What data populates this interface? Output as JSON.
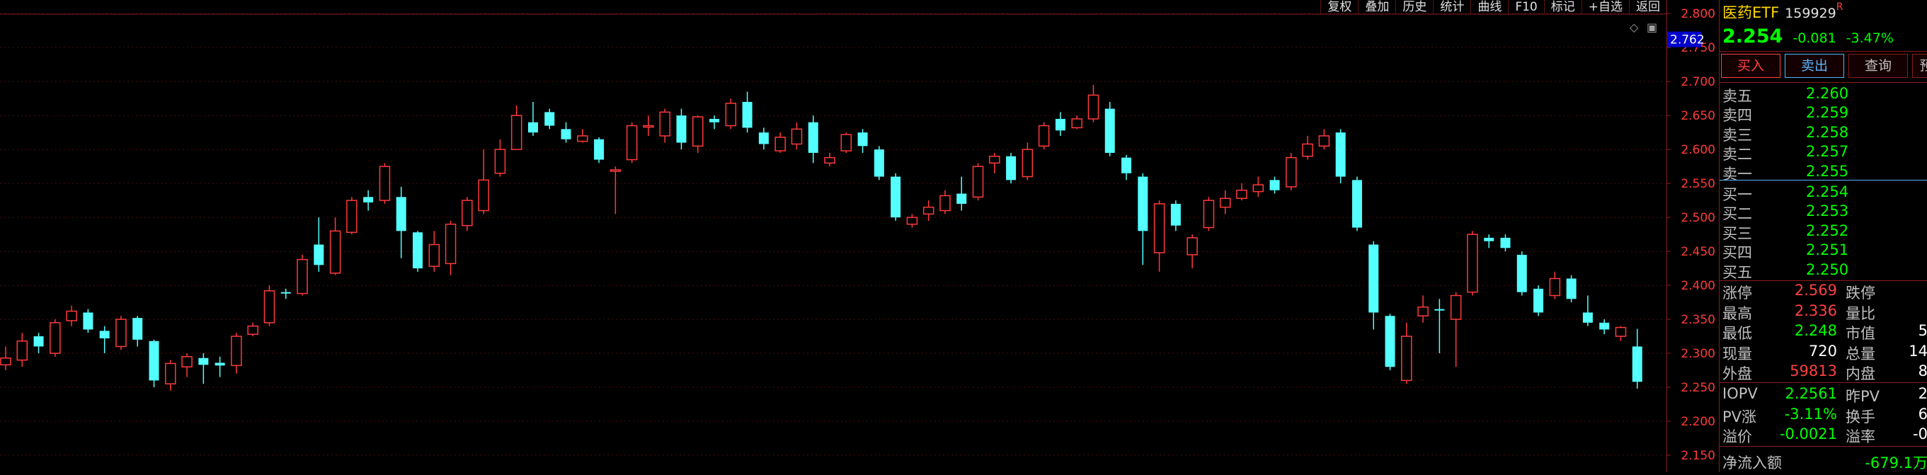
{
  "toolbar": {
    "items": [
      "复权",
      "叠加",
      "历史",
      "统计",
      "曲线",
      "F10",
      "标记",
      "+自选",
      "返回"
    ]
  },
  "quote": {
    "name": "医药ETF",
    "code": "159929",
    "flag": "R",
    "price": "2.254",
    "change": "-0.081",
    "change_pct": "-3.47%"
  },
  "buttons": {
    "buy": "买入",
    "sell": "卖出",
    "query": "查询",
    "more": "预"
  },
  "orderbook": {
    "asks": [
      {
        "label": "卖五",
        "price": "2.260"
      },
      {
        "label": "卖四",
        "price": "2.259"
      },
      {
        "label": "卖三",
        "price": "2.258"
      },
      {
        "label": "卖二",
        "price": "2.257"
      },
      {
        "label": "卖一",
        "price": "2.255"
      }
    ],
    "bids": [
      {
        "label": "买一",
        "price": "2.254"
      },
      {
        "label": "买二",
        "price": "2.253"
      },
      {
        "label": "买三",
        "price": "2.252"
      },
      {
        "label": "买四",
        "price": "2.251"
      },
      {
        "label": "买五",
        "price": "2.250"
      }
    ]
  },
  "stats": [
    {
      "l1": "涨停",
      "v1": "2.569",
      "c1": "red",
      "l2": "跌停",
      "v2": ""
    },
    {
      "l1": "最高",
      "v1": "2.336",
      "c1": "red",
      "l2": "量比",
      "v2": ""
    },
    {
      "l1": "最低",
      "v1": "2.248",
      "c1": "green",
      "l2": "市值",
      "v2": "5"
    },
    {
      "l1": "现量",
      "v1": "720",
      "c1": "white",
      "l2": "总量",
      "v2": "14"
    },
    {
      "l1": "外盘",
      "v1": "59813",
      "c1": "red",
      "l2": "内盘",
      "v2": "8"
    }
  ],
  "iopv": [
    {
      "l1": "IOPV",
      "v1": "2.2561",
      "c1": "green",
      "l2": "昨PV",
      "v2": "2"
    },
    {
      "l1": "PV涨",
      "v1": "-3.11%",
      "c1": "green",
      "l2": "换手",
      "v2": "6"
    },
    {
      "l1": "溢价",
      "v1": "-0.0021",
      "c1": "green",
      "l2": "溢率",
      "v2": "-0"
    }
  ],
  "netflow": {
    "label": "净流入额",
    "value": "-679.1万"
  },
  "colors": {
    "up": "#ff3a3a",
    "down": "#54ffff",
    "grid": "#4a0d0d",
    "axis_text": "#ff3a3a",
    "current_box": "#0000cc"
  },
  "chart_data": {
    "type": "candlestick",
    "ylim": [
      2.125,
      2.82
    ],
    "yticks": [
      "2.800",
      "2.750",
      "2.700",
      "2.650",
      "2.600",
      "2.550",
      "2.500",
      "2.450",
      "2.400",
      "2.350",
      "2.300",
      "2.250",
      "2.200",
      "2.150"
    ],
    "current_value": "2.762",
    "candles": [
      {
        "o": 2.283,
        "c": 2.293,
        "h": 2.31,
        "l": 2.275
      },
      {
        "o": 2.29,
        "c": 2.318,
        "h": 2.33,
        "l": 2.28
      },
      {
        "o": 2.325,
        "c": 2.31,
        "h": 2.33,
        "l": 2.3
      },
      {
        "o": 2.3,
        "c": 2.345,
        "h": 2.35,
        "l": 2.295
      },
      {
        "o": 2.348,
        "c": 2.362,
        "h": 2.37,
        "l": 2.34
      },
      {
        "o": 2.36,
        "c": 2.335,
        "h": 2.365,
        "l": 2.33
      },
      {
        "o": 2.333,
        "c": 2.322,
        "h": 2.34,
        "l": 2.3
      },
      {
        "o": 2.31,
        "c": 2.35,
        "h": 2.355,
        "l": 2.305
      },
      {
        "o": 2.352,
        "c": 2.32,
        "h": 2.355,
        "l": 2.31
      },
      {
        "o": 2.318,
        "c": 2.26,
        "h": 2.32,
        "l": 2.25
      },
      {
        "o": 2.255,
        "c": 2.285,
        "h": 2.29,
        "l": 2.245
      },
      {
        "o": 2.28,
        "c": 2.295,
        "h": 2.3,
        "l": 2.265
      },
      {
        "o": 2.293,
        "c": 2.283,
        "h": 2.3,
        "l": 2.255
      },
      {
        "o": 2.286,
        "c": 2.282,
        "h": 2.295,
        "l": 2.265
      },
      {
        "o": 2.282,
        "c": 2.325,
        "h": 2.33,
        "l": 2.27
      },
      {
        "o": 2.328,
        "c": 2.34,
        "h": 2.345,
        "l": 2.325
      },
      {
        "o": 2.345,
        "c": 2.392,
        "h": 2.4,
        "l": 2.34
      },
      {
        "o": 2.39,
        "c": 2.388,
        "h": 2.395,
        "l": 2.38
      },
      {
        "o": 2.388,
        "c": 2.438,
        "h": 2.445,
        "l": 2.385
      },
      {
        "o": 2.46,
        "c": 2.43,
        "h": 2.5,
        "l": 2.42
      },
      {
        "o": 2.418,
        "c": 2.48,
        "h": 2.5,
        "l": 2.415
      },
      {
        "o": 2.478,
        "c": 2.525,
        "h": 2.53,
        "l": 2.475
      },
      {
        "o": 2.53,
        "c": 2.522,
        "h": 2.54,
        "l": 2.51
      },
      {
        "o": 2.525,
        "c": 2.575,
        "h": 2.58,
        "l": 2.52
      },
      {
        "o": 2.53,
        "c": 2.48,
        "h": 2.545,
        "l": 2.44
      },
      {
        "o": 2.478,
        "c": 2.425,
        "h": 2.48,
        "l": 2.42
      },
      {
        "o": 2.428,
        "c": 2.46,
        "h": 2.48,
        "l": 2.42
      },
      {
        "o": 2.432,
        "c": 2.49,
        "h": 2.495,
        "l": 2.415
      },
      {
        "o": 2.488,
        "c": 2.525,
        "h": 2.53,
        "l": 2.48
      },
      {
        "o": 2.51,
        "c": 2.555,
        "h": 2.6,
        "l": 2.505
      },
      {
        "o": 2.565,
        "c": 2.6,
        "h": 2.615,
        "l": 2.56
      },
      {
        "o": 2.6,
        "c": 2.65,
        "h": 2.665,
        "l": 2.6
      },
      {
        "o": 2.64,
        "c": 2.625,
        "h": 2.67,
        "l": 2.62
      },
      {
        "o": 2.655,
        "c": 2.635,
        "h": 2.66,
        "l": 2.63
      },
      {
        "o": 2.63,
        "c": 2.615,
        "h": 2.64,
        "l": 2.61
      },
      {
        "o": 2.612,
        "c": 2.62,
        "h": 2.63,
        "l": 2.61
      },
      {
        "o": 2.615,
        "c": 2.585,
        "h": 2.618,
        "l": 2.58
      },
      {
        "o": 2.57,
        "c": 2.57,
        "h": 2.575,
        "l": 2.505
      },
      {
        "o": 2.585,
        "c": 2.635,
        "h": 2.64,
        "l": 2.58
      },
      {
        "o": 2.635,
        "c": 2.635,
        "h": 2.65,
        "l": 2.62
      },
      {
        "o": 2.62,
        "c": 2.655,
        "h": 2.66,
        "l": 2.61
      },
      {
        "o": 2.65,
        "c": 2.61,
        "h": 2.66,
        "l": 2.6
      },
      {
        "o": 2.605,
        "c": 2.648,
        "h": 2.65,
        "l": 2.595
      },
      {
        "o": 2.645,
        "c": 2.64,
        "h": 2.65,
        "l": 2.63
      },
      {
        "o": 2.635,
        "c": 2.668,
        "h": 2.675,
        "l": 2.63
      },
      {
        "o": 2.67,
        "c": 2.632,
        "h": 2.685,
        "l": 2.625
      },
      {
        "o": 2.625,
        "c": 2.608,
        "h": 2.632,
        "l": 2.6
      },
      {
        "o": 2.598,
        "c": 2.618,
        "h": 2.625,
        "l": 2.595
      },
      {
        "o": 2.608,
        "c": 2.63,
        "h": 2.64,
        "l": 2.6
      },
      {
        "o": 2.64,
        "c": 2.595,
        "h": 2.65,
        "l": 2.58
      },
      {
        "o": 2.58,
        "c": 2.588,
        "h": 2.595,
        "l": 2.575
      },
      {
        "o": 2.598,
        "c": 2.622,
        "h": 2.625,
        "l": 2.595
      },
      {
        "o": 2.625,
        "c": 2.605,
        "h": 2.63,
        "l": 2.595
      },
      {
        "o": 2.6,
        "c": 2.56,
        "h": 2.605,
        "l": 2.555
      },
      {
        "o": 2.56,
        "c": 2.5,
        "h": 2.565,
        "l": 2.495
      },
      {
        "o": 2.49,
        "c": 2.5,
        "h": 2.505,
        "l": 2.485
      },
      {
        "o": 2.505,
        "c": 2.515,
        "h": 2.525,
        "l": 2.495
      },
      {
        "o": 2.51,
        "c": 2.532,
        "h": 2.54,
        "l": 2.505
      },
      {
        "o": 2.535,
        "c": 2.52,
        "h": 2.56,
        "l": 2.51
      },
      {
        "o": 2.53,
        "c": 2.575,
        "h": 2.58,
        "l": 2.525
      },
      {
        "o": 2.58,
        "c": 2.59,
        "h": 2.595,
        "l": 2.565
      },
      {
        "o": 2.59,
        "c": 2.555,
        "h": 2.595,
        "l": 2.55
      },
      {
        "o": 2.56,
        "c": 2.6,
        "h": 2.61,
        "l": 2.555
      },
      {
        "o": 2.605,
        "c": 2.635,
        "h": 2.64,
        "l": 2.6
      },
      {
        "o": 2.645,
        "c": 2.628,
        "h": 2.655,
        "l": 2.62
      },
      {
        "o": 2.632,
        "c": 2.645,
        "h": 2.65,
        "l": 2.63
      },
      {
        "o": 2.645,
        "c": 2.68,
        "h": 2.695,
        "l": 2.64
      },
      {
        "o": 2.66,
        "c": 2.595,
        "h": 2.67,
        "l": 2.59
      },
      {
        "o": 2.588,
        "c": 2.565,
        "h": 2.592,
        "l": 2.555
      },
      {
        "o": 2.56,
        "c": 2.48,
        "h": 2.565,
        "l": 2.43
      },
      {
        "o": 2.448,
        "c": 2.52,
        "h": 2.525,
        "l": 2.42
      },
      {
        "o": 2.52,
        "c": 2.488,
        "h": 2.525,
        "l": 2.48
      },
      {
        "o": 2.445,
        "c": 2.47,
        "h": 2.475,
        "l": 2.425
      },
      {
        "o": 2.485,
        "c": 2.525,
        "h": 2.53,
        "l": 2.48
      },
      {
        "o": 2.515,
        "c": 2.528,
        "h": 2.54,
        "l": 2.505
      },
      {
        "o": 2.528,
        "c": 2.54,
        "h": 2.55,
        "l": 2.525
      },
      {
        "o": 2.538,
        "c": 2.548,
        "h": 2.56,
        "l": 2.53
      },
      {
        "o": 2.555,
        "c": 2.54,
        "h": 2.56,
        "l": 2.535
      },
      {
        "o": 2.545,
        "c": 2.588,
        "h": 2.595,
        "l": 2.54
      },
      {
        "o": 2.59,
        "c": 2.608,
        "h": 2.62,
        "l": 2.585
      },
      {
        "o": 2.605,
        "c": 2.62,
        "h": 2.63,
        "l": 2.6
      },
      {
        "o": 2.625,
        "c": 2.56,
        "h": 2.63,
        "l": 2.55
      },
      {
        "o": 2.555,
        "c": 2.485,
        "h": 2.56,
        "l": 2.48
      },
      {
        "o": 2.46,
        "c": 2.36,
        "h": 2.465,
        "l": 2.335
      },
      {
        "o": 2.355,
        "c": 2.28,
        "h": 2.358,
        "l": 2.275
      },
      {
        "o": 2.26,
        "c": 2.325,
        "h": 2.345,
        "l": 2.255
      },
      {
        "o": 2.355,
        "c": 2.368,
        "h": 2.385,
        "l": 2.345
      },
      {
        "o": 2.365,
        "c": 2.363,
        "h": 2.38,
        "l": 2.3
      },
      {
        "o": 2.35,
        "c": 2.385,
        "h": 2.39,
        "l": 2.28
      },
      {
        "o": 2.39,
        "c": 2.475,
        "h": 2.48,
        "l": 2.385
      },
      {
        "o": 2.47,
        "c": 2.465,
        "h": 2.475,
        "l": 2.455
      },
      {
        "o": 2.47,
        "c": 2.455,
        "h": 2.475,
        "l": 2.45
      },
      {
        "o": 2.445,
        "c": 2.39,
        "h": 2.45,
        "l": 2.385
      },
      {
        "o": 2.395,
        "c": 2.36,
        "h": 2.4,
        "l": 2.355
      },
      {
        "o": 2.385,
        "c": 2.41,
        "h": 2.42,
        "l": 2.38
      },
      {
        "o": 2.41,
        "c": 2.38,
        "h": 2.415,
        "l": 2.375
      },
      {
        "o": 2.36,
        "c": 2.345,
        "h": 2.385,
        "l": 2.34
      },
      {
        "o": 2.345,
        "c": 2.335,
        "h": 2.35,
        "l": 2.328
      },
      {
        "o": 2.325,
        "c": 2.338,
        "h": 2.34,
        "l": 2.318
      },
      {
        "o": 2.31,
        "c": 2.258,
        "h": 2.336,
        "l": 2.248
      }
    ]
  }
}
